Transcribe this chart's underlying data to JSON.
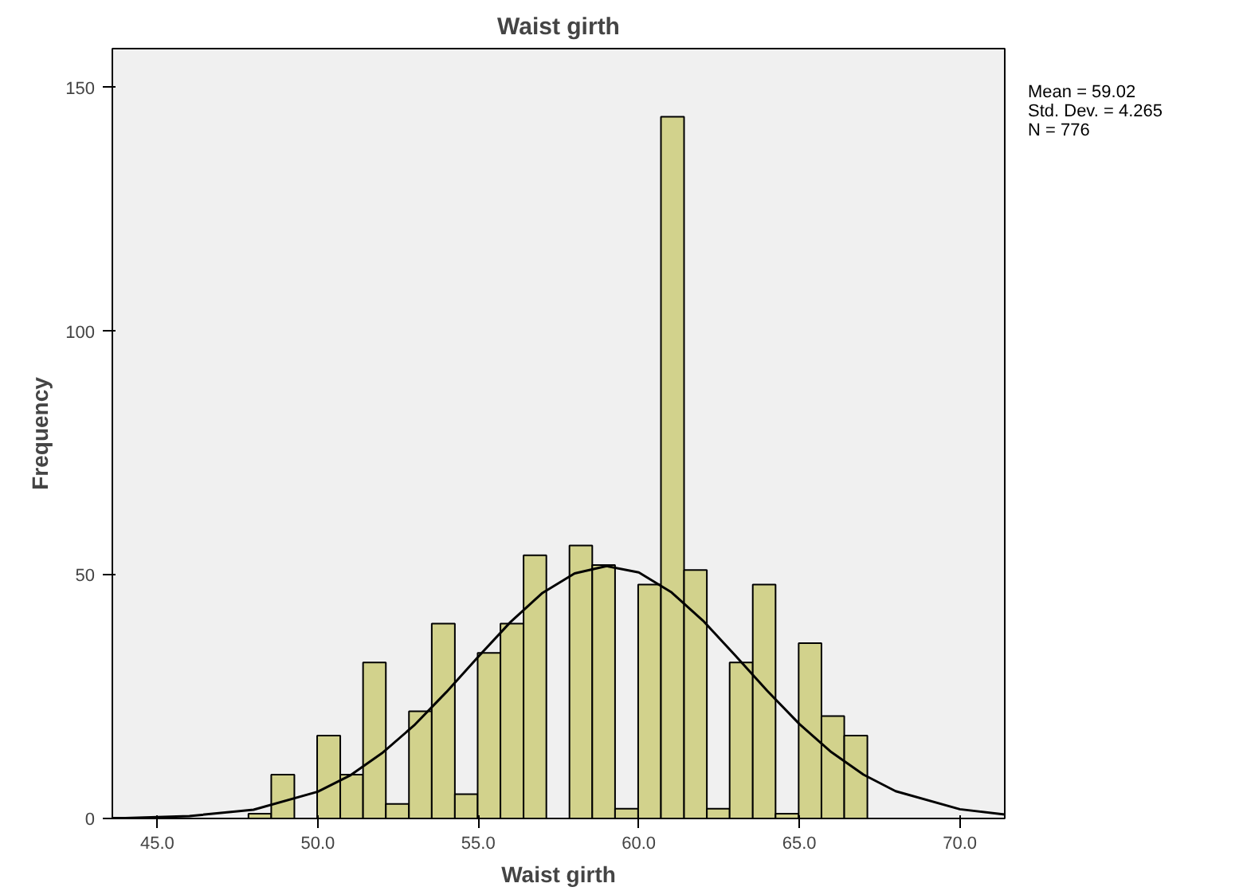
{
  "chart_data": {
    "type": "histogram",
    "title": "Waist girth",
    "xlabel": "Waist girth",
    "ylabel": "Frequency",
    "bins": [
      47.84,
      48.55,
      49.27,
      49.98,
      50.7,
      51.41,
      52.12,
      52.84,
      53.55,
      54.27,
      54.98,
      55.69,
      56.41,
      57.12,
      57.84,
      58.55,
      59.26,
      59.98,
      60.69,
      61.41,
      62.12,
      62.83,
      63.55,
      64.26,
      64.98,
      65.69,
      66.4,
      67.12
    ],
    "values": [
      1,
      9,
      0,
      17,
      9,
      32,
      3,
      22,
      40,
      5,
      34,
      40,
      54,
      0,
      56,
      52,
      2,
      48,
      144,
      51,
      2,
      32,
      48,
      1,
      36,
      21,
      17
    ],
    "color": "#d2d28c",
    "series": [
      {
        "type": "line",
        "color": "#000000",
        "x": [
          43.6,
          44,
          46,
          48,
          50,
          51,
          52,
          53,
          54,
          55,
          56,
          57,
          58,
          59,
          60,
          61,
          62,
          63,
          64,
          65,
          66,
          67,
          68,
          70,
          71.4
        ],
        "values": [
          0.1,
          0.1,
          0.5,
          1.8,
          5.5,
          8.8,
          13.4,
          19.1,
          25.9,
          33.2,
          40.3,
          46.3,
          50.3,
          51.8,
          50.5,
          46.5,
          40.6,
          33.5,
          26.2,
          19.4,
          13.6,
          9.0,
          5.6,
          1.9,
          0.8
        ]
      }
    ],
    "xlim": [
      43.6,
      71.4
    ],
    "ylim": [
      0,
      158
    ],
    "xticks": [
      {
        "value": 45,
        "label": "45.0"
      },
      {
        "value": 50,
        "label": "50.0"
      },
      {
        "value": 55,
        "label": "55.0"
      },
      {
        "value": 60,
        "label": "60.0"
      },
      {
        "value": 65,
        "label": "65.0"
      },
      {
        "value": 70,
        "label": "70.0"
      }
    ],
    "yticks": [
      0,
      50,
      100,
      150
    ],
    "annotations": [
      "Mean = 59.02",
      "Std. Dev. = 4.265",
      "N = 776"
    ]
  }
}
